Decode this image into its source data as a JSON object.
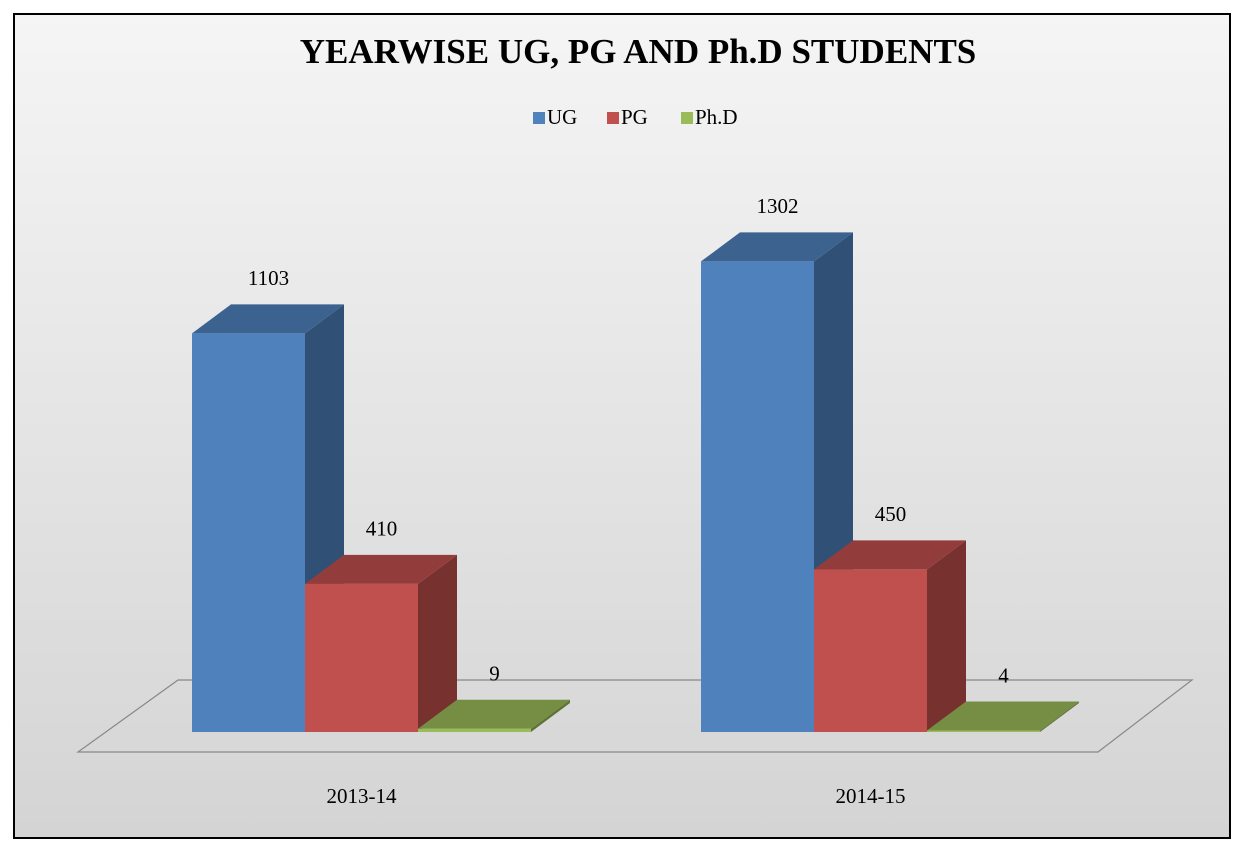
{
  "chart_data": {
    "type": "bar3d",
    "title": "YEARWISE UG, PG AND Ph.D STUDENTS",
    "categories": [
      "2013-14",
      "2014-15"
    ],
    "series": [
      {
        "name": "UG",
        "color": "#4f81bd",
        "values": [
          1103,
          1302
        ]
      },
      {
        "name": "PG",
        "color": "#c0504d",
        "values": [
          410,
          450
        ]
      },
      {
        "name": "Ph.D",
        "color": "#9bbb59",
        "values": [
          9,
          4
        ]
      }
    ],
    "ylim": [
      0,
      1400
    ],
    "legend": "top"
  }
}
